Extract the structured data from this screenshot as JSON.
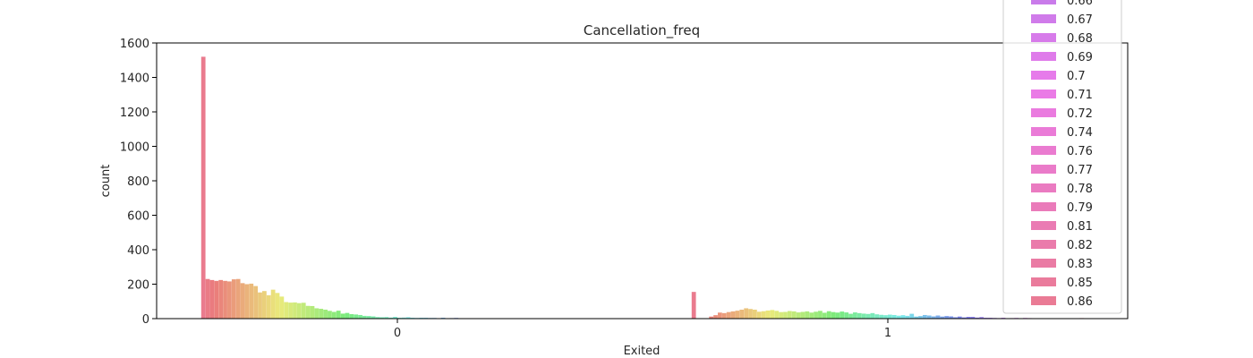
{
  "chart_data": {
    "type": "bar",
    "title": "Cancellation_freq",
    "xlabel": "Exited",
    "ylabel": "count",
    "categories": [
      "0",
      "1"
    ],
    "ylim": [
      0,
      1600
    ],
    "yticks": [
      "0",
      "200",
      "400",
      "600",
      "800",
      "1000",
      "1200",
      "1400",
      "1600"
    ],
    "hue_series_count": 90,
    "series_values": {
      "0": [
        1520,
        230,
        224,
        219,
        224,
        219,
        216,
        228,
        230,
        206,
        200,
        203,
        189,
        152,
        160,
        136,
        168,
        149,
        128,
        96,
        93,
        94,
        90,
        92,
        74,
        73,
        60,
        57,
        52,
        45,
        39,
        46,
        29,
        33,
        26,
        24,
        21,
        16,
        15,
        13,
        9,
        8,
        9,
        6,
        10,
        5,
        6,
        8,
        5,
        4,
        5,
        5,
        4,
        4,
        0,
        5,
        0,
        3,
        4,
        0,
        2,
        0,
        0,
        0,
        0,
        0,
        0,
        0,
        0,
        0,
        0,
        0,
        0,
        0,
        0,
        0,
        0,
        0,
        0,
        0,
        0,
        0,
        0,
        0,
        0,
        0,
        0,
        0,
        0,
        0
      ],
      "1": [
        155,
        0,
        0,
        0,
        12,
        20,
        35,
        32,
        38,
        42,
        46,
        52,
        60,
        56,
        52,
        40,
        43,
        47,
        50,
        45,
        38,
        39,
        44,
        42,
        36,
        39,
        42,
        35,
        40,
        45,
        34,
        43,
        38,
        35,
        41,
        36,
        28,
        36,
        32,
        29,
        27,
        32,
        25,
        22,
        20,
        23,
        21,
        17,
        20,
        16,
        28,
        12,
        15,
        21,
        18,
        13,
        18,
        12,
        15,
        13,
        8,
        12,
        7,
        10,
        10,
        6,
        9,
        5,
        5,
        4,
        3,
        5,
        2,
        3,
        4,
        2,
        4,
        3,
        2,
        0,
        0,
        2,
        0,
        0,
        0,
        0,
        0,
        0,
        0,
        3
      ]
    },
    "legend": {
      "placement": "top-right",
      "visible_entries": [
        "0.66",
        "0.67",
        "0.68",
        "0.69",
        "0.7",
        "0.71",
        "0.72",
        "0.74",
        "0.76",
        "0.77",
        "0.78",
        "0.79",
        "0.81",
        "0.82",
        "0.83",
        "0.85",
        "0.86"
      ]
    },
    "grid": false
  }
}
